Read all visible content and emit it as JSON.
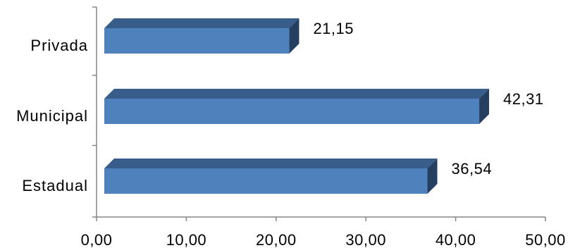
{
  "chart_data": {
    "type": "bar",
    "orientation": "horizontal",
    "style": "3d",
    "title": "",
    "xlabel": "",
    "ylabel": "",
    "categories": [
      "Privada",
      "Municipal",
      "Estadual"
    ],
    "values": [
      21.15,
      42.31,
      36.54
    ],
    "value_labels": [
      "21,15",
      "42,31",
      "36,54"
    ],
    "xlim": [
      0,
      50
    ],
    "x_ticks": [
      0,
      10,
      20,
      30,
      40,
      50
    ],
    "x_tick_labels": [
      "0,00",
      "10,00",
      "20,00",
      "30,00",
      "40,00",
      "50,00"
    ],
    "grid": false,
    "legend": "none",
    "colors": {
      "bar_front": "#4f81bd",
      "bar_top": "#385d8a",
      "bar_side": "#243f60",
      "axis": "#868686"
    }
  }
}
